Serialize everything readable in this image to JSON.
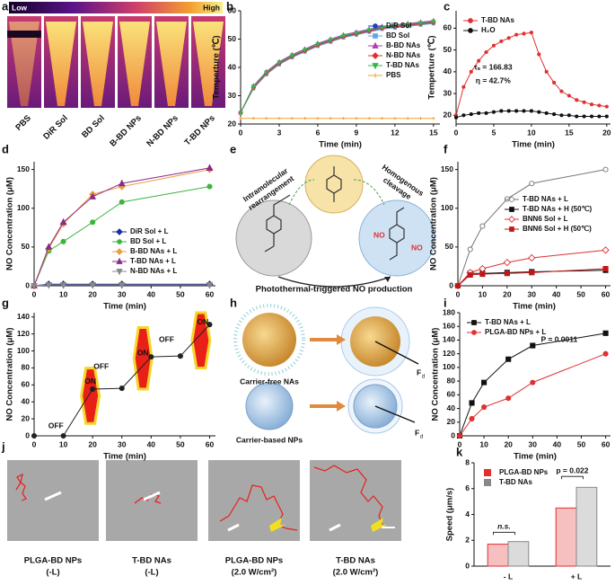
{
  "chart_data": [
    {
      "panel": "b",
      "type": "line",
      "xlabel": "Time (min)",
      "ylabel": "Temperture (℃)",
      "x": [
        0,
        1,
        2,
        3,
        4,
        5,
        6,
        7,
        8,
        9,
        10,
        11,
        12,
        13,
        14,
        15
      ],
      "xlim": [
        0,
        15.5
      ],
      "xticks": [
        0,
        3,
        6,
        9,
        12,
        15
      ],
      "ylim": [
        20,
        60
      ],
      "yticks": [
        20,
        30,
        40,
        50,
        60
      ],
      "legend": "upper right",
      "series": [
        {
          "name": "DiR Sol",
          "color": "#1f3fbf",
          "marker": "circle",
          "values": [
            24,
            33,
            38,
            41.5,
            44,
            46,
            48,
            49.5,
            51,
            52,
            53,
            54,
            54.5,
            55,
            55.5,
            56
          ]
        },
        {
          "name": "BD Sol",
          "color": "#5fa8e8",
          "marker": "square",
          "values": [
            24,
            32.5,
            37.5,
            41,
            43.5,
            45.5,
            47.5,
            49,
            50.5,
            51.5,
            52.5,
            53.5,
            54,
            54.5,
            55,
            55.5
          ]
        },
        {
          "name": "B-BD NAs",
          "color": "#b03ab0",
          "marker": "triangle",
          "values": [
            24,
            33.5,
            38.5,
            42,
            44.5,
            46.5,
            48.5,
            50,
            51.5,
            52.5,
            53.5,
            54.5,
            55,
            55.5,
            56,
            56.5
          ]
        },
        {
          "name": "N-BD NAs",
          "color": "#e0302f",
          "marker": "diamond",
          "values": [
            24,
            32.8,
            37.8,
            41.3,
            43.8,
            45.8,
            47.8,
            49.3,
            50.8,
            51.8,
            52.8,
            53.8,
            54.3,
            54.8,
            55.3,
            55.8
          ]
        },
        {
          "name": "T-BD NAs",
          "color": "#2fb84a",
          "marker": "triangle-down",
          "values": [
            24,
            33.2,
            38.2,
            41.7,
            44.2,
            46.2,
            48.2,
            49.7,
            51.2,
            52.2,
            53.2,
            54.2,
            54.7,
            55.2,
            55.7,
            56.2
          ]
        },
        {
          "name": "PBS",
          "color": "#f0a030",
          "marker": "plus",
          "values": [
            22,
            22,
            22,
            22,
            22,
            22,
            22,
            22,
            22,
            22,
            22,
            22,
            22,
            22,
            22,
            22
          ]
        }
      ]
    },
    {
      "panel": "c",
      "type": "line",
      "xlabel": "Time (min)",
      "ylabel": "Temperture (℃)",
      "x": [
        0,
        1,
        2,
        3,
        4,
        5,
        6,
        7,
        8,
        9,
        10,
        11,
        12,
        13,
        14,
        15,
        16,
        17,
        18,
        19,
        20
      ],
      "xlim": [
        0,
        20.5
      ],
      "xticks": [
        0,
        5,
        10,
        15,
        20
      ],
      "ylim": [
        16,
        68
      ],
      "yticks": [
        20,
        30,
        40,
        50,
        60
      ],
      "legend": "upper left",
      "annotations": [
        "τₛ = 166.83",
        "η = 42.7%"
      ],
      "series": [
        {
          "name": "T-BD NAs",
          "color": "#e03030",
          "marker": "circle",
          "values": [
            20,
            33,
            40,
            45,
            49,
            52,
            54,
            55.5,
            57,
            57.5,
            58,
            48,
            40,
            35,
            31,
            29,
            27,
            26,
            25,
            24.5,
            24
          ]
        },
        {
          "name": "H₂O",
          "color": "#111111",
          "marker": "circle",
          "values": [
            19,
            20,
            20.5,
            21,
            21,
            21.5,
            22,
            22,
            22,
            22,
            22,
            21.5,
            21,
            20.5,
            20,
            20,
            19.5,
            19.5,
            19.5,
            19.5,
            19.5
          ]
        }
      ]
    },
    {
      "panel": "d",
      "type": "line",
      "xlabel": "Time (min)",
      "ylabel": "NO Concentration (μM)",
      "x": [
        0,
        5,
        10,
        20,
        30,
        60
      ],
      "xlim": [
        0,
        62
      ],
      "xticks": [
        0,
        10,
        20,
        30,
        40,
        50,
        60
      ],
      "ylim": [
        0,
        160
      ],
      "yticks": [
        0,
        50,
        100,
        150
      ],
      "legend": "lower right",
      "series": [
        {
          "name": "DiR Sol + L",
          "color": "#1a2fa0",
          "marker": "diamond",
          "values": [
            0,
            2,
            2,
            2,
            2,
            2
          ]
        },
        {
          "name": "BD Sol + L",
          "color": "#3db53d",
          "marker": "circle",
          "values": [
            0,
            45,
            57,
            82,
            108,
            128
          ]
        },
        {
          "name": "B-BD NAs + L",
          "color": "#e8a040",
          "marker": "diamond",
          "values": [
            0,
            48,
            80,
            118,
            128,
            150
          ]
        },
        {
          "name": "T-BD NAs + L",
          "color": "#8a2a8a",
          "marker": "triangle",
          "values": [
            0,
            50,
            82,
            115,
            132,
            152
          ]
        },
        {
          "name": "N-BD NAs + L",
          "color": "#888888",
          "marker": "triangle-down",
          "values": [
            0,
            1,
            1,
            1,
            1,
            1
          ]
        }
      ]
    },
    {
      "panel": "f",
      "type": "line",
      "xlabel": "Time (min)",
      "ylabel": "NO Concentration (μM)",
      "x": [
        0,
        5,
        10,
        20,
        30,
        60
      ],
      "xlim": [
        0,
        62
      ],
      "xticks": [
        0,
        10,
        20,
        30,
        40,
        50,
        60
      ],
      "ylim": [
        0,
        160
      ],
      "yticks": [
        0,
        50,
        100,
        150
      ],
      "legend": "center right",
      "series": [
        {
          "name": "T-BD NAs + L",
          "color": "#777777",
          "marker": "open-circle",
          "values": [
            0,
            47,
            77,
            112,
            132,
            150
          ]
        },
        {
          "name": "T-BD NAs + H (50℃)",
          "color": "#111111",
          "marker": "square",
          "values": [
            0,
            16,
            16,
            17,
            18,
            20
          ]
        },
        {
          "name": "BNN6 Sol + L",
          "color": "#e03030",
          "marker": "open-diamond",
          "values": [
            0,
            17,
            22,
            30,
            36,
            46
          ]
        },
        {
          "name": "BNN6 Sol + H (50℃)",
          "color": "#c01818",
          "marker": "square",
          "values": [
            0,
            14,
            15,
            16,
            17,
            22
          ]
        }
      ]
    },
    {
      "panel": "g",
      "type": "line",
      "xlabel": "Time (min)",
      "ylabel": "NO Concentration (μM)",
      "x": [
        0,
        10,
        20,
        30,
        40,
        50,
        60
      ],
      "xlim": [
        0,
        62
      ],
      "xticks": [
        0,
        10,
        20,
        30,
        40,
        50,
        60
      ],
      "ylim": [
        0,
        145
      ],
      "yticks": [
        0,
        20,
        40,
        60,
        80,
        100,
        120,
        140
      ],
      "annotations": [
        "OFF",
        "ON",
        "OFF",
        "ON",
        "OFF",
        "ON"
      ],
      "series": [
        {
          "color": "#222222",
          "marker": "circle",
          "values": [
            0,
            0,
            55,
            56,
            93,
            94,
            131
          ]
        }
      ]
    },
    {
      "panel": "i",
      "type": "line",
      "xlabel": "Time (min)",
      "ylabel": "NO Concentration (μM)",
      "x": [
        0,
        5,
        10,
        20,
        30,
        60
      ],
      "xlim": [
        0,
        62
      ],
      "xticks": [
        0,
        10,
        20,
        30,
        40,
        50,
        60
      ],
      "ylim": [
        0,
        180
      ],
      "yticks": [
        0,
        20,
        40,
        60,
        80,
        100,
        120,
        140,
        160,
        180
      ],
      "legend": "upper left",
      "annotations": [
        "P = 0.0011"
      ],
      "series": [
        {
          "name": "T-BD NAs + L",
          "color": "#111111",
          "marker": "square",
          "values": [
            0,
            48,
            78,
            112,
            132,
            150
          ]
        },
        {
          "name": "PLGA-BD NPs + L",
          "color": "#e03030",
          "marker": "circle",
          "values": [
            0,
            25,
            42,
            55,
            78,
            120
          ]
        }
      ]
    },
    {
      "panel": "k",
      "type": "bar",
      "ylabel": "Speed (μm/s)",
      "categories": [
        "- L",
        "+ L"
      ],
      "ylim": [
        0,
        8
      ],
      "yticks": [
        0,
        2,
        4,
        6,
        8
      ],
      "legend": "upper left",
      "annotations": [
        "n.s.",
        "p = 0.022"
      ],
      "series": [
        {
          "name": "PLGA-BD NPs",
          "color": "#e03030",
          "values": [
            1.7,
            4.5
          ]
        },
        {
          "name": "T-BD NAs",
          "color": "#888888",
          "values": [
            1.9,
            6.1
          ]
        }
      ]
    }
  ],
  "panel_a": {
    "panel": "a",
    "scale_low": "Low",
    "scale_high": "High",
    "samples": [
      "PBS",
      "DiR Sol",
      "BD Sol",
      "B-BD NPs",
      "N-BD NPs",
      "T-BD NPs"
    ]
  },
  "panel_e": {
    "panel": "e",
    "rearrangement": [
      "Intramolecular",
      "rearrangement"
    ],
    "cleavage": [
      "Homogenous",
      "cleavage"
    ],
    "product": "NO",
    "caption": "Photothermal-triggered NO production"
  },
  "panel_h": {
    "panel": "h",
    "labels": [
      "Carrier-free NAs",
      "Carrier-based NPs"
    ],
    "force": "F",
    "force_subscript": "d"
  },
  "panel_j": {
    "panel": "j",
    "captions": [
      [
        "PLGA-BD NPs",
        "(-L)"
      ],
      [
        "T-BD NAs",
        "(-L)"
      ],
      [
        "PLGA-BD NPs",
        "(2.0 W/cm²)"
      ],
      [
        "T-BD NAs",
        "(2.0 W/cm²)"
      ]
    ]
  }
}
